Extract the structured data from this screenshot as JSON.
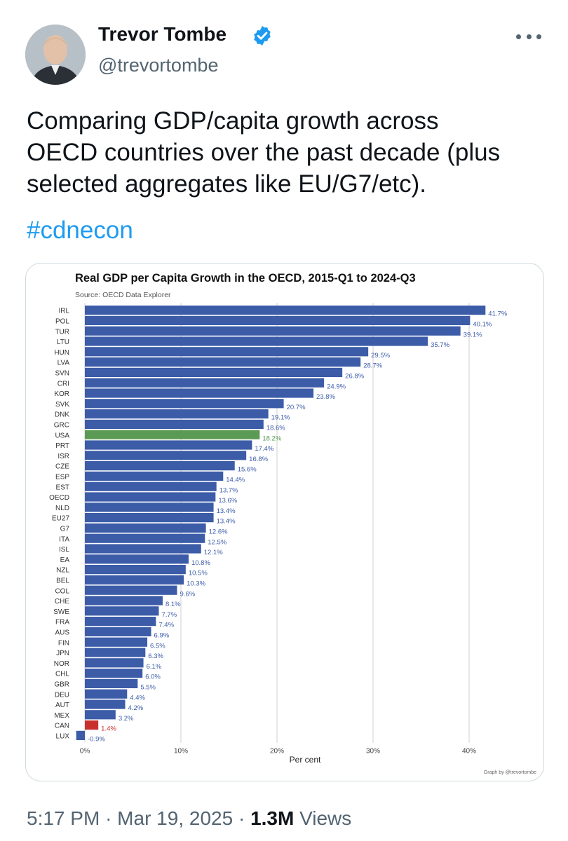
{
  "tweet": {
    "author_name": "Trevor Tombe",
    "handle": "@trevortombe",
    "text": "Comparing GDP/capita growth across\nOECD countries over the past decade (plus\nselected aggregates like EU/G7/etc).",
    "hashtag": "#cdnecon",
    "time": "5:17 PM",
    "date": "Mar 19, 2025",
    "views_count": "1.3M",
    "views_label": "Views",
    "separator": "·"
  },
  "colors": {
    "accent": "#1d9bf0",
    "bar_default": "#3c5ca8",
    "bar_usa": "#5b9a55",
    "bar_can": "#c8302e",
    "label_text": "#3c5ca8"
  },
  "chart_data": {
    "type": "bar",
    "orientation": "horizontal",
    "title": "Real GDP per Capita Growth in the OECD, 2015-Q1 to 2024-Q3",
    "subtitle": "Source: OECD Data Explorer",
    "xlabel": "Per cent",
    "credit": "Graph by @trevortombe",
    "xlim": [
      0,
      45
    ],
    "x_ticks": [
      0,
      10,
      20,
      30,
      40
    ],
    "x_tick_labels": [
      "0%",
      "10%",
      "20%",
      "30%",
      "40%"
    ],
    "grid": true,
    "categories": [
      "IRL",
      "POL",
      "TUR",
      "LTU",
      "HUN",
      "LVA",
      "SVN",
      "CRI",
      "KOR",
      "SVK",
      "DNK",
      "GRC",
      "USA",
      "PRT",
      "ISR",
      "CZE",
      "ESP",
      "EST",
      "OECD",
      "NLD",
      "EU27",
      "G7",
      "ITA",
      "ISL",
      "EA",
      "NZL",
      "BEL",
      "COL",
      "CHE",
      "SWE",
      "FRA",
      "AUS",
      "FIN",
      "JPN",
      "NOR",
      "CHL",
      "GBR",
      "DEU",
      "AUT",
      "MEX",
      "CAN",
      "LUX"
    ],
    "values": [
      41.7,
      40.1,
      39.1,
      35.7,
      29.5,
      28.7,
      26.8,
      24.9,
      23.8,
      20.7,
      19.1,
      18.6,
      18.2,
      17.4,
      16.8,
      15.6,
      14.4,
      13.7,
      13.6,
      13.4,
      13.4,
      12.6,
      12.5,
      12.1,
      10.8,
      10.5,
      10.3,
      9.6,
      8.1,
      7.7,
      7.4,
      6.9,
      6.5,
      6.3,
      6.1,
      6.0,
      5.5,
      4.4,
      4.2,
      3.2,
      1.4,
      -0.9
    ],
    "value_labels": [
      "41.7%",
      "40.1%",
      "39.1%",
      "35.7%",
      "29.5%",
      "28.7%",
      "26.8%",
      "24.9%",
      "23.8%",
      "20.7%",
      "19.1%",
      "18.6%",
      "18.2%",
      "17.4%",
      "16.8%",
      "15.6%",
      "14.4%",
      "13.7%",
      "13.6%",
      "13.4%",
      "13.4%",
      "12.6%",
      "12.5%",
      "12.1%",
      "10.8%",
      "10.5%",
      "10.3%",
      "9.6%",
      "8.1%",
      "7.7%",
      "7.4%",
      "6.9%",
      "6.5%",
      "6.3%",
      "6.1%",
      "6.0%",
      "5.5%",
      "4.4%",
      "4.2%",
      "3.2%",
      "1.4%",
      "-0.9%"
    ],
    "highlight": {
      "USA": "#5b9a55",
      "CAN": "#c8302e"
    }
  }
}
